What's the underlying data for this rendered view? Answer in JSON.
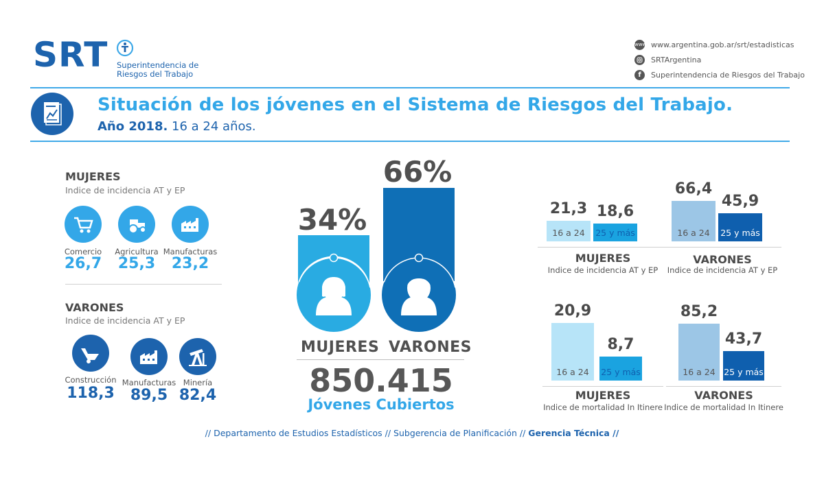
{
  "header": {
    "logo": "SRT",
    "logo_sub_1": "Superintendencia de",
    "logo_sub_2": "Riesgos del Trabajo",
    "web_icon": "www",
    "web": "www.argentina.gob.ar/srt/estadisticas",
    "instagram": "SRTArgentina",
    "facebook": "Superintendencia de Riesgos del Trabajo"
  },
  "title": "Situación de los jóvenes en el Sistema de Riesgos del Trabajo.",
  "subtitle_bold": "Año 2018.",
  "subtitle_rest": " 16 a 24 años.",
  "left": {
    "mujeres_title": "MUJERES",
    "mujeres_sub": "Indice de incidencia AT y EP",
    "mujeres_sectors": [
      {
        "label": "Comercio",
        "value": "26,7",
        "icon": "cart-icon"
      },
      {
        "label": "Agricultura",
        "value": "25,3",
        "icon": "tractor-icon"
      },
      {
        "label": "Manufacturas",
        "value": "23,2",
        "icon": "factory-icon"
      }
    ],
    "varones_title": "VARONES",
    "varones_sub": "Indice de incidencia AT y EP",
    "varones_sectors": [
      {
        "label": "Construcción",
        "value": "118,3",
        "icon": "wheelbarrow-icon"
      },
      {
        "label": "Manufacturas",
        "value": "89,5",
        "icon": "factory-icon"
      },
      {
        "label": "Minería",
        "value": "82,4",
        "icon": "oil-pump-icon"
      }
    ],
    "colors": {
      "mujeres": "#33a7e8",
      "varones": "#1d63ad"
    }
  },
  "center": {
    "mujeres_pct": "34%",
    "varones_pct": "66%",
    "mujeres_label": "MUJERES",
    "varones_label": "VARONES",
    "total": "850.415",
    "total_label": "Jóvenes Cubiertos",
    "colors": {
      "mujeres": "#29abe2",
      "varones": "#0f6fb6"
    }
  },
  "chart_data": [
    {
      "type": "bar",
      "title": "MUJERES",
      "subtitle": "Indice de incidencia AT y EP",
      "categories": [
        "16 a 24",
        "25 y más"
      ],
      "values": [
        21.3,
        18.6
      ],
      "value_labels": [
        "21,3",
        "18,6"
      ],
      "colors": [
        "#b7e4f8",
        "#1aa3e0"
      ]
    },
    {
      "type": "bar",
      "title": "VARONES",
      "subtitle": "Indice de incidencia AT y EP",
      "categories": [
        "16 a 24",
        "25 y más"
      ],
      "values": [
        66.4,
        45.9
      ],
      "value_labels": [
        "66,4",
        "45,9"
      ],
      "colors": [
        "#9cc6e6",
        "#0f5fae"
      ]
    },
    {
      "type": "bar",
      "title": "MUJERES",
      "subtitle": "Indice de mortalidad In Itinere",
      "categories": [
        "16 a 24",
        "25 y más"
      ],
      "values": [
        20.9,
        8.7
      ],
      "value_labels": [
        "20,9",
        "8,7"
      ],
      "colors": [
        "#b7e4f8",
        "#1aa3e0"
      ]
    },
    {
      "type": "bar",
      "title": "VARONES",
      "subtitle": "Indice de mortalidad In Itinere",
      "categories": [
        "16 a 24",
        "25 y más"
      ],
      "values": [
        85.2,
        43.7
      ],
      "value_labels": [
        "85,2",
        "43,7"
      ],
      "colors": [
        "#9cc6e6",
        "#0f5fae"
      ]
    }
  ],
  "footer": {
    "part1": "// Departamento de Estudios Estadísticos // Subgerencia de Planificación //",
    "part2": "Gerencia Técnica //"
  }
}
